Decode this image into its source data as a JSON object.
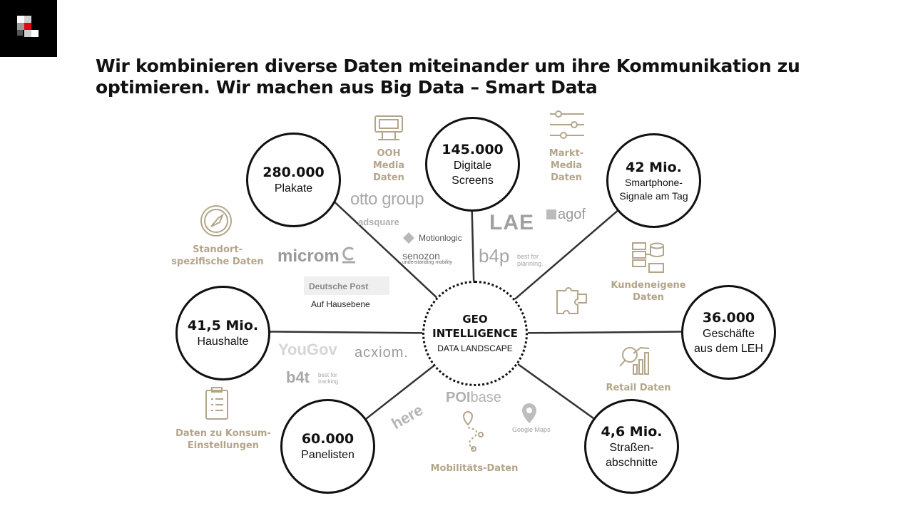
{
  "header": {
    "title_line1": "Wir kombinieren diverse Daten miteinander um ihre Kommunikation zu",
    "title_line2": "optimieren. Wir machen aus Big Data – Smart Data"
  },
  "center": {
    "line1": "GEO",
    "line2": "INTELLIGENCE",
    "line3": "DATA LANDSCAPE"
  },
  "nodes": {
    "plakate": {
      "value": "280.000",
      "label": "Plakate"
    },
    "screens": {
      "value": "145.000",
      "label1": "Digitale",
      "label2": "Screens"
    },
    "smartphone": {
      "value": "42 Mio.",
      "label1": "Smartphone-",
      "label2": "Signale am Tag"
    },
    "haushalte": {
      "value": "41,5 Mio.",
      "label": "Haushalte"
    },
    "geschaefte": {
      "value": "36.000",
      "label1": "Geschäfte",
      "label2": "aus dem LEH"
    },
    "panelisten": {
      "value": "60.000",
      "label": "Panelisten"
    },
    "strassen": {
      "value": "4,6 Mio.",
      "label1": "Straßen-",
      "label2": "abschnitte"
    }
  },
  "categories": {
    "ooh": [
      "OOH",
      "Media",
      "Daten"
    ],
    "markt": [
      "Markt-",
      "Media",
      "Daten"
    ],
    "standort": [
      "Standort-",
      "spezifische Daten"
    ],
    "kunden": [
      "Kundeneigene",
      "Daten"
    ],
    "retail": [
      "Retail Daten"
    ],
    "konsum": [
      "Daten zu Konsum-",
      "Einstellungen"
    ],
    "mobil": [
      "Mobilitäts-Daten"
    ]
  },
  "brands": {
    "otto": "otto group",
    "adsquare": "adsquare",
    "motionlogic": "Motionlogic",
    "lae": "LAE",
    "agof": "agof",
    "microm": "microm",
    "senozon": "senozon",
    "senozon_sub": "understanding mobility",
    "b4p": "b4p",
    "b4p_sub1": "best for",
    "b4p_sub2": "planning.",
    "deutsche_post": "Deutsche Post",
    "auf_hausebene": "Auf Hausebene",
    "yougov": "YouGov",
    "acxiom": "acxiom.",
    "b4t": "b4t",
    "b4t_sub1": "best for",
    "b4t_sub2": "tracking.",
    "poibase_a": "POI",
    "poibase_b": "base",
    "here": "here",
    "google_maps": "Google Maps"
  },
  "colors": {
    "accent": "#b3a58a",
    "dark": "#111111",
    "brand_grey": "#a9a9a9",
    "logo_red": "#e30613"
  },
  "icons": [
    "logo-mark-icon",
    "billboard-icon",
    "sliders-icon",
    "compass-icon",
    "database-icon",
    "puzzle-icon",
    "analytics-icon",
    "clipboard-icon",
    "route-pin-icon",
    "map-pin-icon"
  ]
}
